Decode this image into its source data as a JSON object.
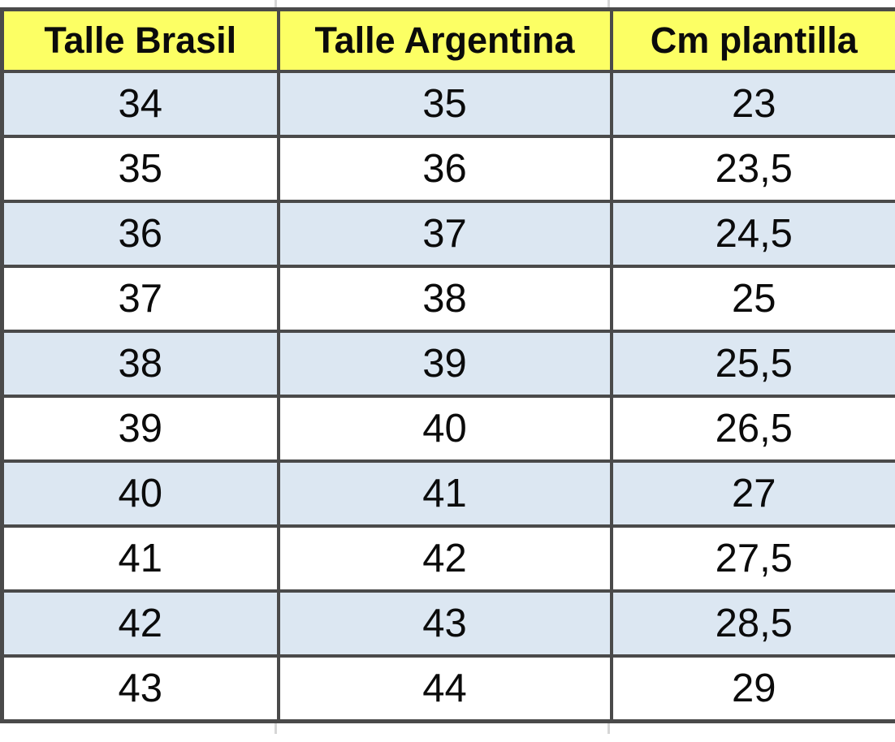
{
  "chart_data": {
    "type": "table",
    "columns": [
      "Talle Brasil",
      "Talle Argentina",
      "Cm plantilla"
    ],
    "rows": [
      [
        "34",
        "35",
        "23"
      ],
      [
        "35",
        "36",
        "23,5"
      ],
      [
        "36",
        "37",
        "24,5"
      ],
      [
        "37",
        "38",
        "25"
      ],
      [
        "38",
        "39",
        "25,5"
      ],
      [
        "39",
        "40",
        "26,5"
      ],
      [
        "40",
        "41",
        "27"
      ],
      [
        "41",
        "42",
        "27,5"
      ],
      [
        "42",
        "43",
        "28,5"
      ],
      [
        "43",
        "44",
        "29"
      ]
    ],
    "layout_hints": {
      "header_style": "bold on yellow",
      "row_striping": "first data row shaded, alternating",
      "grid": "on"
    }
  },
  "colors": {
    "header_bg": "#fcff64",
    "alt_row_bg": "#dce7f2",
    "row_bg": "#ffffff",
    "border_color": "#4a4a4a",
    "gridline": "#d6d6d6",
    "text_color": "#0b0b0b"
  }
}
